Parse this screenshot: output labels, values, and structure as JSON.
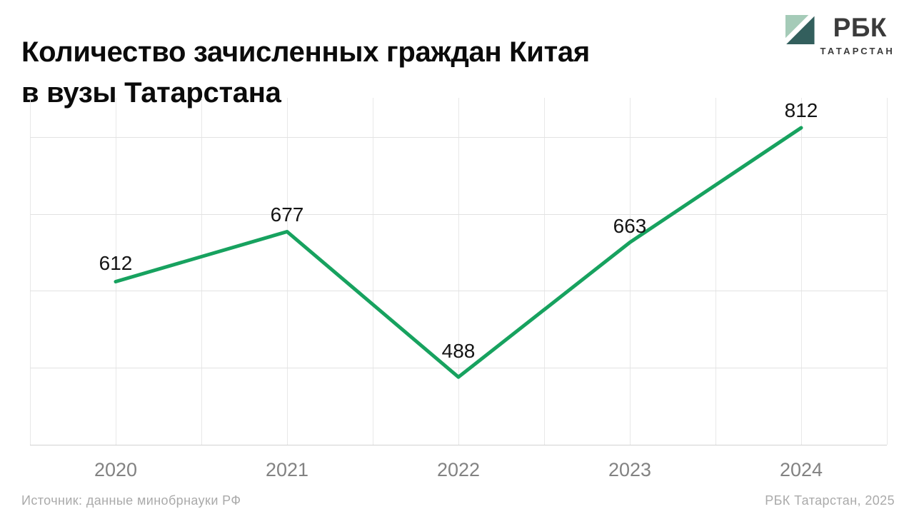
{
  "header": {
    "title_line1": "Количество зачисленных граждан Китая",
    "title_line2": "в вузы Татарстана"
  },
  "logo": {
    "brand": "РБК",
    "region": "ТАТАРСТАН",
    "colors": {
      "light_triangle": "#a5cbb8",
      "dark_triangle": "#335f5d",
      "text": "#3b3b3b"
    }
  },
  "chart_data": {
    "type": "line",
    "title": "Количество зачисленных граждан Китая в вузы Татарстана",
    "categories": [
      "2020",
      "2021",
      "2022",
      "2023",
      "2024"
    ],
    "values": [
      612,
      677,
      488,
      663,
      812
    ],
    "data_labels": [
      612,
      677,
      488,
      663,
      812
    ],
    "label_dy": [
      -26,
      -24,
      -36,
      -23,
      -24
    ],
    "line_color": "#17a25f",
    "line_width": 5,
    "ylim": [
      400,
      851
    ],
    "y_gridlines": [
      400,
      500,
      600,
      700,
      800
    ],
    "vertical_gridline_count": 11,
    "grid": true,
    "legend": false,
    "xlabel": "",
    "ylabel": ""
  },
  "footer": {
    "source": "Источник: данные минобрнауки РФ",
    "credit": "РБК Татарстан, 2025"
  }
}
